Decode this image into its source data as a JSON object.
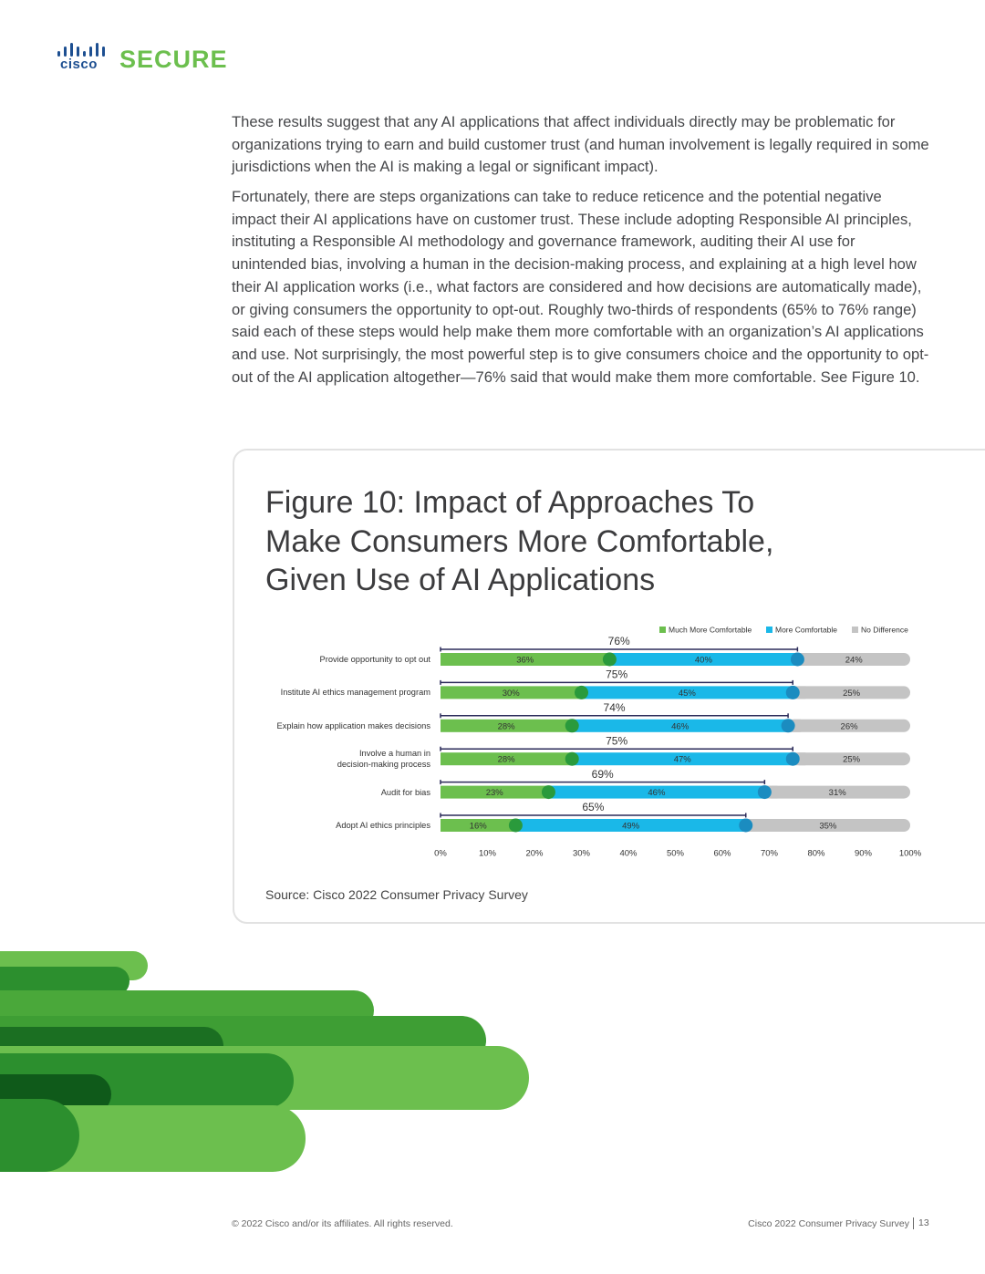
{
  "header": {
    "logo": "cisco",
    "product": "SECURE"
  },
  "body": {
    "paragraphs": [
      "These results suggest that any AI applications that affect individuals directly may be problematic for organizations trying to earn and build customer trust (and human involvement is legally required in some jurisdictions when the AI is making a legal or significant impact).",
      "Fortunately, there are steps organizations can take to reduce reticence and the potential negative impact their AI applications have on customer trust. These include adopting Responsible AI principles, instituting a Responsible AI methodology and governance framework, auditing their AI use for unintended bias, involving a human in the decision-making process, and explaining at a high level how their AI application works (i.e., what factors are considered and how decisions are automatically made), or giving consumers the opportunity to opt-out. Roughly two-thirds of respondents (65% to 76% range) said each of these steps would help make them more comfortable with an organization’s AI applications and use. Not surprisingly, the most powerful step is to give consumers choice and the opportunity to opt-out of the AI application altogether—76% said that would make them more comfortable. See Figure 10."
    ]
  },
  "chart_data": {
    "type": "stacked-bar-horizontal",
    "title": "Figure 10: Impact of Approaches To Make Consumers More Comfortable, Given Use of AI Applications",
    "source": "Source: Cisco 2022 Consumer Privacy Survey",
    "categories": [
      "Provide opportunity to opt out",
      "Institute AI ethics management program",
      "Explain how application makes decisions",
      "Involve a human in\ndecision-making process",
      "Audit for bias",
      "Adopt AI ethics principles"
    ],
    "series": [
      {
        "name": "Much More Comfortable",
        "color": "#6cbf4e",
        "values": [
          36,
          30,
          28,
          28,
          23,
          16
        ],
        "value_labels": [
          "36%",
          "30%",
          "28%",
          "28%",
          "23%",
          "16%"
        ]
      },
      {
        "name": "More Comfortable",
        "color": "#1ab8e8",
        "values": [
          40,
          45,
          46,
          47,
          46,
          49
        ],
        "value_labels": [
          "40%",
          "45%",
          "46%",
          "47%",
          "46%",
          "49%"
        ]
      },
      {
        "name": "No Difference",
        "color": "#c4c4c4",
        "values": [
          24,
          25,
          26,
          25,
          31,
          35
        ],
        "value_labels": [
          "24%",
          "25%",
          "26%",
          "25%",
          "31%",
          "35%"
        ]
      }
    ],
    "totals": {
      "values": [
        76,
        75,
        74,
        75,
        69,
        65
      ],
      "value_labels": [
        "76%",
        "75%",
        "74%",
        "75%",
        "69%",
        "65%"
      ]
    },
    "xlim": [
      0,
      100
    ],
    "xticks": [
      {
        "value": 0,
        "label": "0%"
      },
      {
        "value": 10,
        "label": "10%"
      },
      {
        "value": 20,
        "label": "20%"
      },
      {
        "value": 30,
        "label": "30%"
      },
      {
        "value": 40,
        "label": "40%"
      },
      {
        "value": 50,
        "label": "50%"
      },
      {
        "value": 60,
        "label": "60%"
      },
      {
        "value": 70,
        "label": "70%"
      },
      {
        "value": 80,
        "label": "80%"
      },
      {
        "value": 90,
        "label": "90%"
      },
      {
        "value": 100,
        "label": "100%"
      }
    ]
  },
  "footer": {
    "copyright": "© 2022 Cisco and/or its affiliates. All rights reserved.",
    "publication": "Cisco 2022 Consumer Privacy Survey",
    "page": "13"
  }
}
